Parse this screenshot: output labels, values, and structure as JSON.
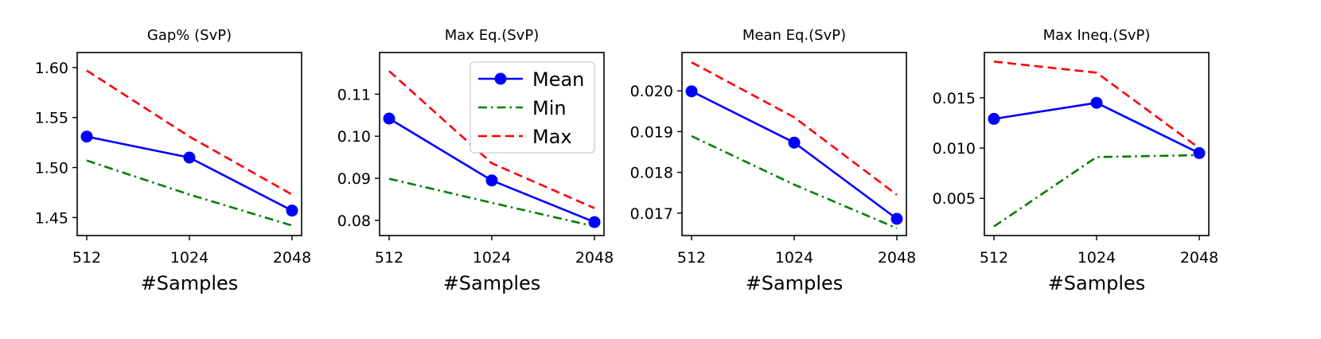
{
  "chart_data": [
    {
      "type": "line",
      "title": "Gap% (SvP)",
      "xlabel": "#Samples",
      "ylabel": "",
      "x": [
        512,
        1024,
        2048
      ],
      "xtick_labels": [
        "512",
        "1024",
        "2048"
      ],
      "ylim": [
        1.432,
        1.615
      ],
      "yticks": [
        1.45,
        1.5,
        1.55,
        1.6
      ],
      "ytick_labels": [
        "1.45",
        "1.50",
        "1.55",
        "1.60"
      ],
      "series": [
        {
          "name": "Mean",
          "values": [
            1.531,
            1.51,
            1.457
          ],
          "color": "#0000ff",
          "style": "solid",
          "marker": "circle"
        },
        {
          "name": "Min",
          "values": [
            1.507,
            1.473,
            1.442
          ],
          "color": "#008000",
          "style": "dashdot",
          "marker": "none"
        },
        {
          "name": "Max",
          "values": [
            1.597,
            1.531,
            1.473
          ],
          "color": "#ff0000",
          "style": "dashed",
          "marker": "none"
        }
      ],
      "legend": null
    },
    {
      "type": "line",
      "title": "Max Eq.(SvP)",
      "xlabel": "#Samples",
      "ylabel": "",
      "x": [
        512,
        1024,
        2048
      ],
      "xtick_labels": [
        "512",
        "1024",
        "2048"
      ],
      "ylim": [
        0.0764,
        0.1199
      ],
      "yticks": [
        0.08,
        0.09,
        0.1,
        0.11
      ],
      "ytick_labels": [
        "0.08",
        "0.09",
        "0.10",
        "0.11"
      ],
      "series": [
        {
          "name": "Mean",
          "values": [
            0.1042,
            0.0895,
            0.0796
          ],
          "color": "#0000ff",
          "style": "solid",
          "marker": "circle"
        },
        {
          "name": "Min",
          "values": [
            0.0899,
            0.0842,
            0.0786
          ],
          "color": "#008000",
          "style": "dashdot",
          "marker": "none"
        },
        {
          "name": "Max",
          "values": [
            0.1155,
            0.0936,
            0.0829
          ],
          "color": "#ff0000",
          "style": "dashed",
          "marker": "none"
        }
      ],
      "legend": {
        "position": "top-right",
        "entries": [
          "Mean",
          "Min",
          "Max"
        ]
      }
    },
    {
      "type": "line",
      "title": "Mean Eq.(SvP)",
      "xlabel": "#Samples",
      "ylabel": "",
      "x": [
        512,
        1024,
        2048
      ],
      "xtick_labels": [
        "512",
        "1024",
        "2048"
      ],
      "ylim": [
        0.01645,
        0.02094
      ],
      "yticks": [
        0.017,
        0.018,
        0.019,
        0.02
      ],
      "ytick_labels": [
        "0.017",
        "0.018",
        "0.019",
        "0.020"
      ],
      "series": [
        {
          "name": "Mean",
          "values": [
            0.01999,
            0.01873,
            0.01686
          ],
          "color": "#0000ff",
          "style": "solid",
          "marker": "circle"
        },
        {
          "name": "Min",
          "values": [
            0.01889,
            0.0177,
            0.01663
          ],
          "color": "#008000",
          "style": "dashdot",
          "marker": "none"
        },
        {
          "name": "Max",
          "values": [
            0.0207,
            0.01935,
            0.01745
          ],
          "color": "#ff0000",
          "style": "dashed",
          "marker": "none"
        }
      ],
      "legend": null
    },
    {
      "type": "line",
      "title": "Max Ineq.(SvP)",
      "xlabel": "#Samples",
      "ylabel": "",
      "x": [
        512,
        1024,
        2048
      ],
      "xtick_labels": [
        "512",
        "1024",
        "2048"
      ],
      "ylim": [
        0.0013,
        0.0195
      ],
      "yticks": [
        0.005,
        0.01,
        0.015
      ],
      "ytick_labels": [
        "0.005",
        "0.010",
        "0.015"
      ],
      "series": [
        {
          "name": "Mean",
          "values": [
            0.0129,
            0.0145,
            0.0095
          ],
          "color": "#0000ff",
          "style": "solid",
          "marker": "circle"
        },
        {
          "name": "Min",
          "values": [
            0.0022,
            0.0091,
            0.0093
          ],
          "color": "#008000",
          "style": "dashdot",
          "marker": "none"
        },
        {
          "name": "Max",
          "values": [
            0.0186,
            0.0175,
            0.01
          ],
          "color": "#ff0000",
          "style": "dashed",
          "marker": "none"
        }
      ],
      "legend": null
    }
  ]
}
